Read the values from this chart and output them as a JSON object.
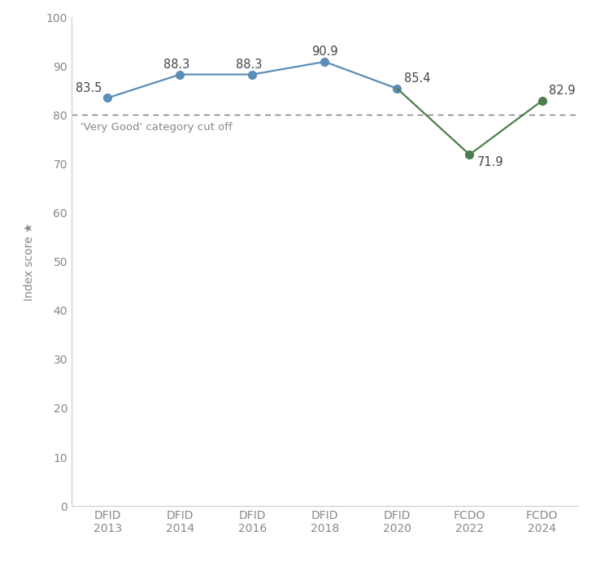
{
  "x_labels": [
    "DFID\n2013",
    "DFID\n2014",
    "DFID\n2016",
    "DFID\n2018",
    "DFID\n2020",
    "FCDO\n2022",
    "FCDO\n2024"
  ],
  "y_values": [
    83.5,
    88.3,
    88.3,
    90.9,
    85.4,
    71.9,
    82.9
  ],
  "blue_color": "#5b8db8",
  "green_color": "#4e7d4e",
  "cutoff_value": 80,
  "cutoff_label": "'Very Good' category cut off",
  "ylabel": "Index score ★",
  "ylim": [
    0,
    100
  ],
  "yticks": [
    0,
    10,
    20,
    30,
    40,
    50,
    60,
    70,
    80,
    90,
    100
  ],
  "marker_size": 7,
  "line_width": 1.6,
  "annotation_fontsize": 10.5,
  "axis_fontsize": 10,
  "cutoff_fontsize": 9.5,
  "tick_color": "#aaaaaa",
  "spine_color": "#cccccc",
  "text_color": "#888888",
  "annotation_color": "#444444",
  "background_color": "#ffffff",
  "figsize": [
    7.33,
    7.07
  ],
  "dpi": 100
}
